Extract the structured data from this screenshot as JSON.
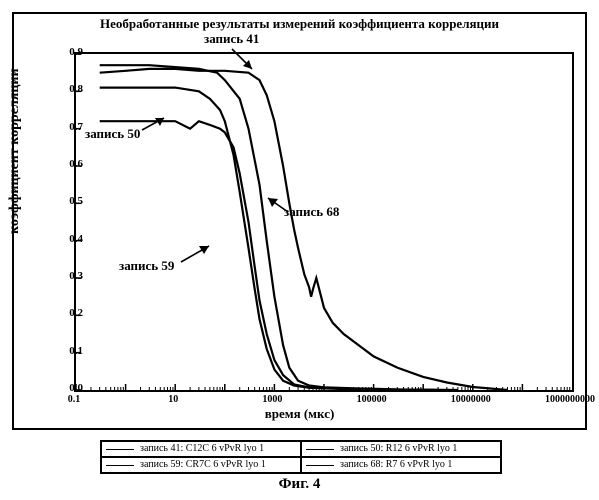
{
  "chart": {
    "type": "line",
    "title": "Необработанные результаты измерений коэффициента корреляции",
    "ylabel": "коэффициент корреляции",
    "xlabel": "время (мкс)",
    "x_scale": "log",
    "y_scale": "linear",
    "xlim_log10": [
      -1,
      9
    ],
    "ylim": [
      0.0,
      0.9
    ],
    "ytick_step": 0.1,
    "xticks_log10": [
      -1,
      1,
      3,
      5,
      7,
      9
    ],
    "xtick_labels": [
      "0.1",
      "10",
      "1000",
      "100000",
      "10000000",
      "1000000000"
    ],
    "yticks": [
      0.0,
      0.1,
      0.2,
      0.3,
      0.4,
      0.5,
      0.6,
      0.7,
      0.8,
      0.9
    ],
    "background_color": "#ffffff",
    "axis_color": "#000000",
    "line_color": "#000000",
    "line_width": 2.2,
    "title_fontsize": 13,
    "label_fontsize": 14,
    "tick_fontsize": 11,
    "series": {
      "rec41": {
        "label": "запись 41: C12C 6 vPvR lyo 1",
        "points": [
          [
            0.3,
            0.87
          ],
          [
            1,
            0.87
          ],
          [
            3,
            0.87
          ],
          [
            10,
            0.865
          ],
          [
            30,
            0.86
          ],
          [
            70,
            0.85
          ],
          [
            100,
            0.83
          ],
          [
            200,
            0.78
          ],
          [
            300,
            0.7
          ],
          [
            500,
            0.55
          ],
          [
            700,
            0.4
          ],
          [
            1000,
            0.25
          ],
          [
            1500,
            0.12
          ],
          [
            2000,
            0.06
          ],
          [
            3000,
            0.025
          ],
          [
            5000,
            0.012
          ],
          [
            10000,
            0.007
          ],
          [
            50000,
            0.004
          ],
          [
            500000,
            0.001
          ],
          [
            5000000,
            0.0
          ]
        ]
      },
      "rec50": {
        "label": "запись 50: R12 6 vPvR lyo 1",
        "points": [
          [
            0.3,
            0.72
          ],
          [
            1,
            0.72
          ],
          [
            3,
            0.72
          ],
          [
            10,
            0.72
          ],
          [
            20,
            0.7
          ],
          [
            30,
            0.72
          ],
          [
            50,
            0.71
          ],
          [
            80,
            0.7
          ],
          [
            100,
            0.69
          ],
          [
            150,
            0.65
          ],
          [
            200,
            0.58
          ],
          [
            300,
            0.45
          ],
          [
            400,
            0.33
          ],
          [
            500,
            0.24
          ],
          [
            700,
            0.15
          ],
          [
            1000,
            0.08
          ],
          [
            1500,
            0.04
          ],
          [
            2500,
            0.015
          ],
          [
            5000,
            0.007
          ],
          [
            20000,
            0.004
          ],
          [
            200000,
            0.001
          ],
          [
            2000000,
            0.0
          ]
        ]
      },
      "rec59": {
        "label": "запись 59: CR7C 6 vPvR lyo 1",
        "points": [
          [
            0.3,
            0.81
          ],
          [
            1,
            0.81
          ],
          [
            3,
            0.81
          ],
          [
            10,
            0.81
          ],
          [
            30,
            0.8
          ],
          [
            50,
            0.78
          ],
          [
            80,
            0.75
          ],
          [
            100,
            0.72
          ],
          [
            150,
            0.63
          ],
          [
            200,
            0.53
          ],
          [
            300,
            0.38
          ],
          [
            400,
            0.27
          ],
          [
            500,
            0.19
          ],
          [
            700,
            0.11
          ],
          [
            1000,
            0.055
          ],
          [
            1500,
            0.025
          ],
          [
            2500,
            0.012
          ],
          [
            5000,
            0.006
          ],
          [
            20000,
            0.003
          ],
          [
            200000,
            0.001
          ],
          [
            2000000,
            0.0
          ]
        ]
      },
      "rec68": {
        "label": "запись 68: R7 6 vPvR lyo 1",
        "points": [
          [
            0.3,
            0.85
          ],
          [
            1,
            0.855
          ],
          [
            3,
            0.86
          ],
          [
            10,
            0.86
          ],
          [
            30,
            0.855
          ],
          [
            100,
            0.855
          ],
          [
            300,
            0.85
          ],
          [
            500,
            0.83
          ],
          [
            700,
            0.79
          ],
          [
            1000,
            0.72
          ],
          [
            1500,
            0.6
          ],
          [
            2000,
            0.5
          ],
          [
            2500,
            0.43
          ],
          [
            3000,
            0.38
          ],
          [
            4000,
            0.31
          ],
          [
            5000,
            0.275
          ],
          [
            5500,
            0.25
          ],
          [
            6000,
            0.27
          ],
          [
            7000,
            0.3
          ],
          [
            8000,
            0.27
          ],
          [
            10000,
            0.22
          ],
          [
            15000,
            0.18
          ],
          [
            25000,
            0.15
          ],
          [
            50000,
            0.12
          ],
          [
            100000,
            0.09
          ],
          [
            300000,
            0.06
          ],
          [
            1000000,
            0.035
          ],
          [
            3000000,
            0.02
          ],
          [
            10000000,
            0.008
          ],
          [
            50000000,
            0.0
          ]
        ]
      }
    },
    "annotations": {
      "a41": {
        "text": "запись 41"
      },
      "a50": {
        "text": "запись 50"
      },
      "a59": {
        "text": "запись 59"
      },
      "a68": {
        "text": "запись 68"
      }
    }
  },
  "legend": {
    "rows": [
      [
        "rec41",
        "rec50"
      ],
      [
        "rec59",
        "rec68"
      ]
    ]
  },
  "caption": "Фиг. 4"
}
